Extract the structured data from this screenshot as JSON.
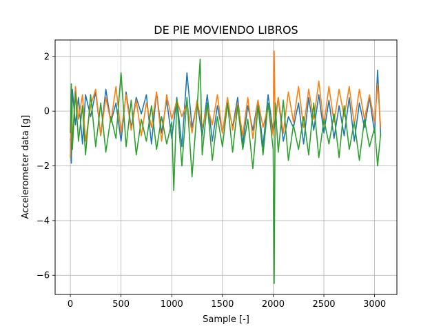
{
  "chart_data": {
    "type": "line",
    "title": "DE PIE MOVIENDO LIBROS",
    "xlabel": "Sample [-]",
    "ylabel": "Accelerometer data [g]",
    "xlim": [
      -150,
      3220
    ],
    "ylim": [
      -6.7,
      2.6
    ],
    "xticks": [
      0,
      500,
      1000,
      1500,
      2000,
      2500,
      3000
    ],
    "yticks": [
      2,
      0,
      -2,
      -4,
      -6
    ],
    "ytick_labels": [
      "2",
      "0",
      "−2",
      "−4",
      "−6"
    ],
    "grid": true,
    "legend": "none",
    "colors": {
      "series1": "#1f77b4",
      "series2": "#ff7f0e",
      "series3": "#2ca02c",
      "grid": "#b0b0b0",
      "axes": "#000000"
    },
    "series": [
      {
        "x": [
          0,
          10,
          20,
          50,
          80,
          120,
          150,
          200,
          250,
          300,
          350,
          400,
          450,
          500,
          550,
          600,
          650,
          700,
          750,
          800,
          850,
          900,
          950,
          1000,
          1050,
          1100,
          1150,
          1200,
          1250,
          1300,
          1350,
          1400,
          1450,
          1500,
          1550,
          1600,
          1650,
          1700,
          1750,
          1800,
          1850,
          1900,
          1950,
          2000,
          2050,
          2100,
          2150,
          2200,
          2250,
          2300,
          2350,
          2400,
          2450,
          2500,
          2550,
          2600,
          2650,
          2700,
          2750,
          2800,
          2850,
          2900,
          2950,
          3000,
          3030,
          3060
        ],
        "y": [
          -1.0,
          -1.9,
          0.8,
          -0.5,
          0.5,
          -1.2,
          0.6,
          -0.2,
          0.7,
          -0.9,
          0.8,
          -0.4,
          0.3,
          -1.1,
          0.7,
          -0.6,
          0.5,
          -0.1,
          0.6,
          -1.2,
          0.7,
          -0.8,
          0.4,
          -1.0,
          0.5,
          -1.3,
          1.4,
          -0.6,
          0.3,
          -0.9,
          0.6,
          -1.1,
          0.2,
          -0.8,
          0.3,
          -0.6,
          0.5,
          -1.2,
          0.2,
          -0.7,
          0.4,
          -1.3,
          0.6,
          -0.8,
          0.5,
          -1.1,
          -0.2,
          -0.6,
          0.3,
          -1.2,
          0.5,
          -0.7,
          0.6,
          -0.8,
          0.4,
          -1.0,
          0.2,
          -0.9,
          0.5,
          -1.1,
          0.3,
          -0.6,
          0.5,
          -0.8,
          1.5,
          -0.9
        ]
      },
      {
        "x": [
          0,
          10,
          20,
          50,
          80,
          120,
          150,
          200,
          250,
          300,
          350,
          400,
          450,
          500,
          550,
          600,
          650,
          700,
          750,
          800,
          850,
          900,
          950,
          1000,
          1050,
          1100,
          1150,
          1200,
          1250,
          1300,
          1350,
          1400,
          1450,
          1500,
          1550,
          1600,
          1650,
          1700,
          1750,
          1800,
          1850,
          1900,
          1950,
          2000,
          2010,
          2020,
          2050,
          2100,
          2150,
          2200,
          2250,
          2300,
          2350,
          2400,
          2450,
          2500,
          2550,
          2600,
          2650,
          2700,
          2750,
          2800,
          2850,
          2900,
          2950,
          3000,
          3030,
          3060
        ],
        "y": [
          -1.7,
          0.4,
          -1.2,
          0.9,
          -0.3,
          0.6,
          -1.1,
          0.2,
          0.8,
          -0.9,
          0.5,
          -0.4,
          0.9,
          -0.8,
          0.6,
          -0.7,
          0.4,
          -0.9,
          0.3,
          -0.6,
          0.7,
          -1.1,
          0.6,
          -0.3,
          0.4,
          -0.2,
          0.3,
          -0.8,
          0.4,
          -0.6,
          0.2,
          -0.5,
          0.6,
          -0.8,
          0.5,
          -0.7,
          0.3,
          -0.9,
          0.5,
          -1.0,
          0.4,
          -0.6,
          0.2,
          -0.9,
          2.2,
          -0.5,
          0.5,
          -0.8,
          0.7,
          -0.4,
          0.9,
          -0.6,
          0.8,
          -0.3,
          1.1,
          -0.5,
          0.9,
          -0.4,
          0.8,
          -0.2,
          0.9,
          -0.5,
          0.8,
          -0.3,
          0.6,
          -0.4,
          1.0,
          -0.6
        ]
      },
      {
        "x": [
          0,
          10,
          20,
          50,
          80,
          120,
          150,
          200,
          250,
          300,
          350,
          400,
          450,
          500,
          550,
          600,
          650,
          700,
          750,
          800,
          850,
          900,
          950,
          1000,
          1020,
          1050,
          1100,
          1150,
          1200,
          1250,
          1280,
          1300,
          1350,
          1400,
          1450,
          1500,
          1550,
          1600,
          1650,
          1700,
          1750,
          1800,
          1850,
          1900,
          1950,
          2000,
          2010,
          2020,
          2050,
          2100,
          2150,
          2200,
          2250,
          2300,
          2350,
          2400,
          2450,
          2500,
          2550,
          2600,
          2650,
          2700,
          2750,
          2800,
          2850,
          2900,
          2950,
          3000,
          3030,
          3060
        ],
        "y": [
          -0.8,
          1.0,
          -1.4,
          0.7,
          -1.1,
          0.2,
          -1.6,
          0.6,
          -1.3,
          0.3,
          -1.5,
          -0.2,
          -1.0,
          1.4,
          -1.3,
          0.4,
          -1.6,
          -0.3,
          -1.1,
          0.2,
          -1.4,
          -0.2,
          -1.2,
          -0.4,
          -2.9,
          0.4,
          -2.0,
          0.5,
          -2.4,
          0.1,
          1.9,
          -1.6,
          0.3,
          -1.8,
          -0.2,
          -1.3,
          0.3,
          -1.5,
          0.2,
          -1.4,
          -0.3,
          -2.1,
          0.2,
          -1.6,
          0.3,
          -1.4,
          -6.3,
          0.3,
          -1.5,
          0.4,
          -1.8,
          -0.5,
          -1.4,
          -0.2,
          -1.6,
          0.3,
          -1.7,
          -0.3,
          -1.2,
          -0.1,
          -1.7,
          0.2,
          -1.4,
          -0.4,
          -1.8,
          -0.3,
          -1.3,
          -0.6,
          -2.0,
          -0.8
        ]
      }
    ]
  }
}
